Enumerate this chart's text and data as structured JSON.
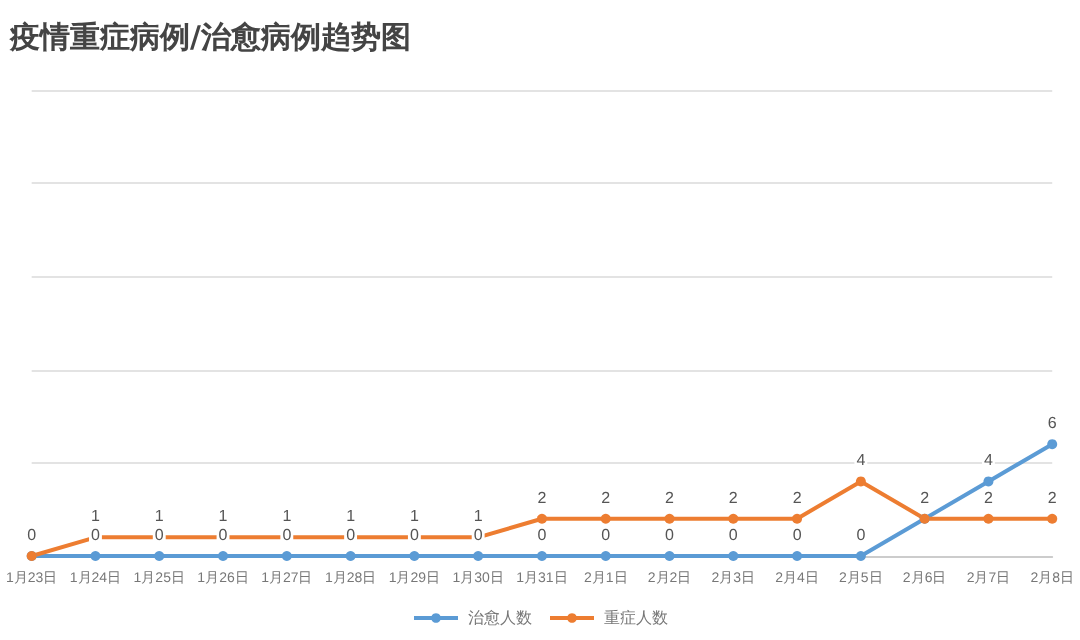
{
  "chart_data": {
    "type": "line",
    "title": "疫情重症病例/治愈病例趋势图",
    "categories": [
      "1月23日",
      "1月24日",
      "1月25日",
      "1月26日",
      "1月27日",
      "1月28日",
      "1月29日",
      "1月30日",
      "1月31日",
      "2月1日",
      "2月2日",
      "2月3日",
      "2月4日",
      "2月5日",
      "2月6日",
      "2月7日",
      "2月8日"
    ],
    "series": [
      {
        "name": "治愈人数",
        "color": "#5b9bd5",
        "values": [
          0,
          0,
          0,
          0,
          0,
          0,
          0,
          0,
          0,
          0,
          0,
          0,
          0,
          0,
          2,
          4,
          6
        ],
        "value_labels": [
          null,
          "0",
          "0",
          "0",
          "0",
          "0",
          "0",
          "0",
          "0",
          "0",
          "0",
          "0",
          "0",
          "0",
          "2",
          "4",
          "6"
        ]
      },
      {
        "name": "重症人数",
        "color": "#ed7d31",
        "values": [
          0,
          1,
          1,
          1,
          1,
          1,
          1,
          1,
          2,
          2,
          2,
          2,
          2,
          4,
          2,
          2,
          2
        ],
        "value_labels": [
          "0",
          "1",
          "1",
          "1",
          "1",
          "1",
          "1",
          "1",
          "2",
          "2",
          "2",
          "2",
          "2",
          "4",
          null,
          "2",
          "2"
        ]
      }
    ],
    "ylim": [
      0,
      25
    ],
    "yticks": [
      0,
      5,
      10,
      15,
      20,
      25
    ],
    "tick_labels": "x",
    "grid": "y",
    "legend": "bottom",
    "marker": "circle"
  }
}
